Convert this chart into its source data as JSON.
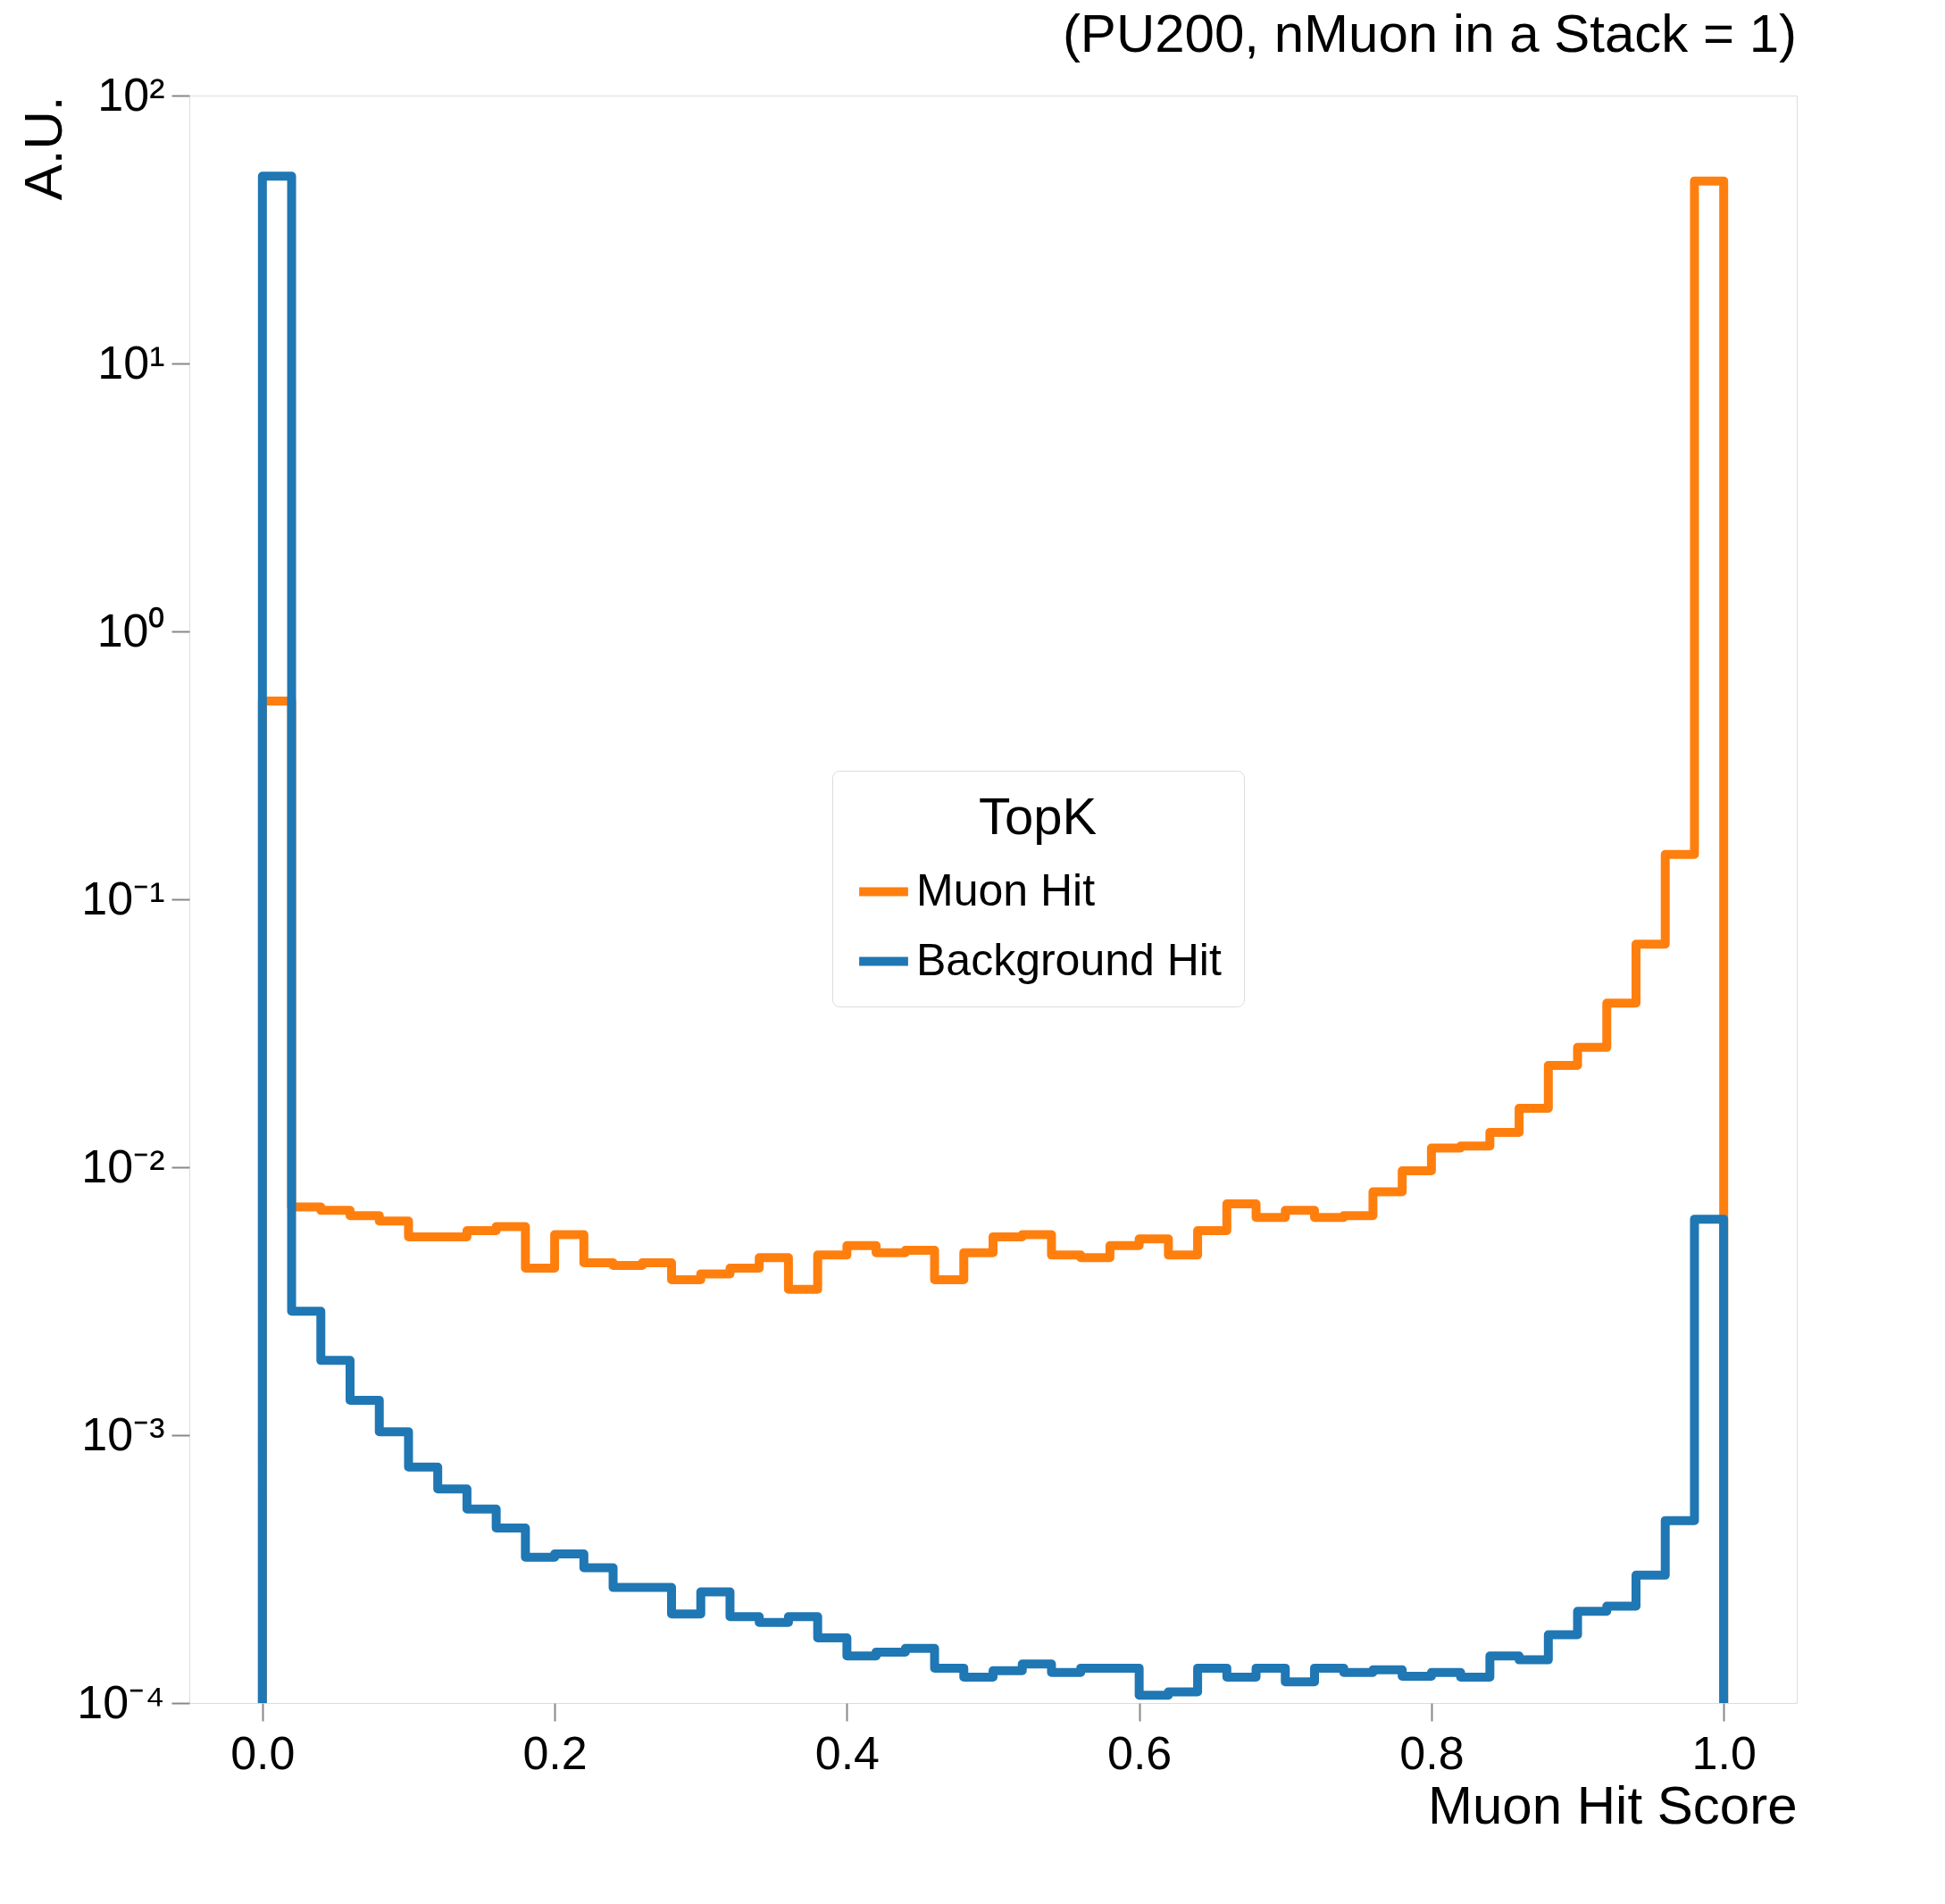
{
  "chart_data": {
    "type": "histogram",
    "title": "(PU200, nMuon in a Stack = 1)",
    "xlabel": "Muon Hit Score",
    "ylabel": "A.U.",
    "legend_title": "TopK",
    "legend": "center",
    "log": "y",
    "grid": false,
    "line_style": "solid",
    "bins": [
      0.0,
      0.02,
      0.04,
      0.06,
      0.08,
      0.1,
      0.12,
      0.14,
      0.16,
      0.18,
      0.2,
      0.22,
      0.24,
      0.26,
      0.28,
      0.3,
      0.32,
      0.34,
      0.36,
      0.38,
      0.4,
      0.42,
      0.44,
      0.46,
      0.48,
      0.5,
      0.52,
      0.54,
      0.56,
      0.58,
      0.6,
      0.62,
      0.64,
      0.66,
      0.68,
      0.7,
      0.72,
      0.74,
      0.76,
      0.78,
      0.8,
      0.82,
      0.84,
      0.86,
      0.88,
      0.9,
      0.92,
      0.94,
      0.96,
      0.98,
      1.0
    ],
    "series": [
      {
        "name": "Muon Hit",
        "color": "#ff7f0e",
        "values": [
          0.55,
          0.0071,
          0.0069,
          0.0066,
          0.0063,
          0.0055,
          0.0055,
          0.0058,
          0.006,
          0.0042,
          0.0056,
          0.0044,
          0.0043,
          0.0044,
          0.0038,
          0.004,
          0.0042,
          0.0046,
          0.0035,
          0.0047,
          0.0051,
          0.0048,
          0.0049,
          0.0038,
          0.0048,
          0.0055,
          0.0056,
          0.0047,
          0.0046,
          0.0051,
          0.0054,
          0.0047,
          0.0058,
          0.0073,
          0.0065,
          0.0069,
          0.0065,
          0.0066,
          0.0081,
          0.0097,
          0.0118,
          0.012,
          0.0135,
          0.0166,
          0.024,
          0.028,
          0.041,
          0.068,
          0.147,
          48
        ]
      },
      {
        "name": "Background Hit",
        "color": "#1f77b4",
        "values": [
          50,
          0.0029,
          0.0019,
          0.00135,
          0.00103,
          0.00076,
          0.00063,
          0.00053,
          0.00045,
          0.00035,
          0.00036,
          0.00032,
          0.00027,
          0.00027,
          0.000215,
          0.00026,
          0.00021,
          0.0002,
          0.00021,
          0.000175,
          0.00015,
          0.000155,
          0.00016,
          0.000135,
          0.000125,
          0.000132,
          0.00014,
          0.00013,
          0.000135,
          0.000135,
          0.000107,
          0.00011,
          0.000135,
          0.000125,
          0.000135,
          0.00012,
          0.000135,
          0.00013,
          0.000133,
          0.000126,
          0.00013,
          0.000125,
          0.00015,
          0.000145,
          0.00018,
          0.00022,
          0.00023,
          0.0003,
          0.00048,
          0.0064
        ]
      }
    ],
    "xlim": [
      -0.05,
      1.05
    ],
    "xticks": [
      {
        "value": 0.0,
        "label": "0.0"
      },
      {
        "value": 0.2,
        "label": "0.2"
      },
      {
        "value": 0.4,
        "label": "0.4"
      },
      {
        "value": 0.6,
        "label": "0.6"
      },
      {
        "value": 0.8,
        "label": "0.8"
      },
      {
        "value": 1.0,
        "label": "1.0"
      }
    ],
    "ylim": [
      0.0001,
      100
    ],
    "yticks": [
      {
        "value": 0.0001,
        "label": "10⁻⁴"
      },
      {
        "value": 0.001,
        "label": "10⁻³"
      },
      {
        "value": 0.01,
        "label": "10⁻²"
      },
      {
        "value": 0.1,
        "label": "10⁻¹"
      },
      {
        "value": 1,
        "label": "10⁰"
      },
      {
        "value": 10,
        "label": "10¹"
      },
      {
        "value": 100,
        "label": "10²"
      }
    ]
  }
}
